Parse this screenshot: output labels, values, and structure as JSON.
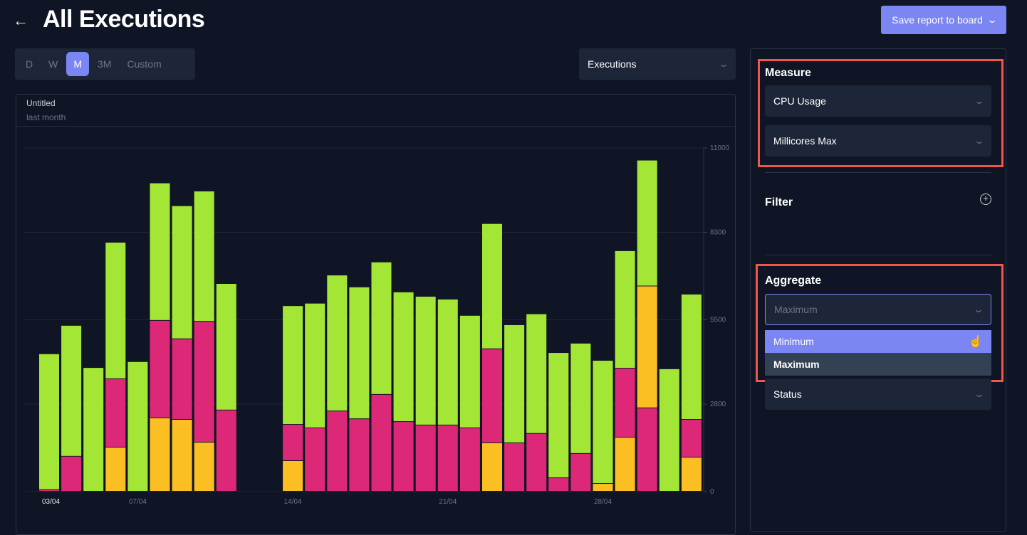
{
  "header": {
    "title": "All Executions",
    "back_icon": "arrow-left-icon",
    "save_label": "Save report to board"
  },
  "range_tabs": [
    {
      "label": "D"
    },
    {
      "label": "W"
    },
    {
      "label": "M",
      "active": true
    },
    {
      "label": "3M"
    },
    {
      "label": "Custom"
    }
  ],
  "metric_select": {
    "value": "Executions"
  },
  "chart_header": {
    "title": "Untitled",
    "subtitle": "last month"
  },
  "panel": {
    "measure": {
      "title": "Measure",
      "metric": "CPU Usage",
      "unit": "Millicores Max"
    },
    "filter": {
      "title": "Filter",
      "add_icon": "plus-circle-icon"
    },
    "aggregate": {
      "title": "Aggregate",
      "value": "Maximum",
      "options": [
        {
          "label": "Minimum",
          "hovered": true
        },
        {
          "label": "Maximum",
          "selected": true
        }
      ]
    },
    "group_by": {
      "value": "Status"
    }
  },
  "colors": {
    "green": "#a4e635",
    "pink": "#dd2878",
    "yellow": "#fbbf24",
    "accent": "#7c86f2",
    "highlight": "#f0564a"
  },
  "chart_data": {
    "type": "bar",
    "stacked": true,
    "ylim": [
      0,
      11000
    ],
    "yticks": [
      "0",
      "2800",
      "5500",
      "8300",
      "11000"
    ],
    "yaxis_position": "right",
    "grid": true,
    "xtick_labels": [
      {
        "label": "03/04",
        "day": "03/04"
      },
      {
        "label": "07/04",
        "day": "07/04"
      },
      {
        "label": "14/04",
        "day": "14/04"
      },
      {
        "label": "21/04",
        "day": "21/04"
      },
      {
        "label": "28/04",
        "day": "28/04"
      }
    ],
    "bars": [
      {
        "day": "03/04",
        "segments": [
          [
            "pink",
            50
          ],
          [
            "green",
            4350
          ]
        ]
      },
      {
        "day": "04/04",
        "segments": [
          [
            "pink",
            1120
          ],
          [
            "green",
            4190
          ]
        ]
      },
      {
        "day": "05/04",
        "segments": [
          [
            "green",
            3960
          ]
        ]
      },
      {
        "day": "06/04",
        "segments": [
          [
            "yellow",
            1410
          ],
          [
            "pink",
            2190
          ],
          [
            "green",
            4370
          ]
        ]
      },
      {
        "day": "07/04",
        "segments": [
          [
            "green",
            4150
          ]
        ]
      },
      {
        "day": "08/04",
        "segments": [
          [
            "yellow",
            2350
          ],
          [
            "pink",
            3120
          ],
          [
            "green",
            4400
          ]
        ]
      },
      {
        "day": "09/04",
        "segments": [
          [
            "yellow",
            2300
          ],
          [
            "pink",
            2580
          ],
          [
            "green",
            4260
          ]
        ]
      },
      {
        "day": "10/04",
        "segments": [
          [
            "yellow",
            1570
          ],
          [
            "pink",
            3870
          ],
          [
            "green",
            4170
          ]
        ]
      },
      {
        "day": "11/04",
        "segments": [
          [
            "pink",
            2600
          ],
          [
            "green",
            4050
          ]
        ]
      },
      {
        "day": "12/04",
        "segments": []
      },
      {
        "day": "13/04",
        "segments": []
      },
      {
        "day": "14/04",
        "segments": [
          [
            "yellow",
            980
          ],
          [
            "pink",
            1160
          ],
          [
            "green",
            3800
          ]
        ]
      },
      {
        "day": "15/04",
        "segments": [
          [
            "pink",
            2030
          ],
          [
            "green",
            3990
          ]
        ]
      },
      {
        "day": "16/04",
        "segments": [
          [
            "pink",
            2570
          ],
          [
            "green",
            4350
          ]
        ]
      },
      {
        "day": "17/04",
        "segments": [
          [
            "pink",
            2320
          ],
          [
            "green",
            4220
          ]
        ]
      },
      {
        "day": "18/04",
        "segments": [
          [
            "pink",
            3100
          ],
          [
            "green",
            4240
          ]
        ]
      },
      {
        "day": "19/04",
        "segments": [
          [
            "pink",
            2230
          ],
          [
            "green",
            4150
          ]
        ]
      },
      {
        "day": "20/04",
        "segments": [
          [
            "pink",
            2120
          ],
          [
            "green",
            4120
          ]
        ]
      },
      {
        "day": "21/04",
        "segments": [
          [
            "pink",
            2120
          ],
          [
            "green",
            4030
          ]
        ]
      },
      {
        "day": "22/04",
        "segments": [
          [
            "pink",
            2030
          ],
          [
            "green",
            3600
          ]
        ]
      },
      {
        "day": "23/04",
        "segments": [
          [
            "yellow",
            1550
          ],
          [
            "pink",
            3010
          ],
          [
            "green",
            4010
          ]
        ]
      },
      {
        "day": "24/04",
        "segments": [
          [
            "pink",
            1550
          ],
          [
            "green",
            3780
          ]
        ]
      },
      {
        "day": "25/04",
        "segments": [
          [
            "pink",
            1850
          ],
          [
            "green",
            3830
          ]
        ]
      },
      {
        "day": "26/04",
        "segments": [
          [
            "pink",
            430
          ],
          [
            "green",
            4010
          ]
        ]
      },
      {
        "day": "27/04",
        "segments": [
          [
            "pink",
            1210
          ],
          [
            "green",
            3530
          ]
        ]
      },
      {
        "day": "28/04",
        "segments": [
          [
            "yellow",
            250
          ],
          [
            "green",
            3940
          ]
        ]
      },
      {
        "day": "29/04",
        "segments": [
          [
            "yellow",
            1730
          ],
          [
            "pink",
            2210
          ],
          [
            "green",
            3760
          ]
        ]
      },
      {
        "day": "30/04",
        "segments": [
          [
            "pink",
            2670
          ],
          [
            "yellow",
            3900
          ],
          [
            "green",
            4030
          ]
        ]
      },
      {
        "day": "01/05",
        "segments": [
          [
            "green",
            3920
          ]
        ]
      },
      {
        "day": "02/05",
        "segments": [
          [
            "yellow",
            1090
          ],
          [
            "pink",
            1210
          ],
          [
            "green",
            4010
          ]
        ]
      }
    ]
  }
}
